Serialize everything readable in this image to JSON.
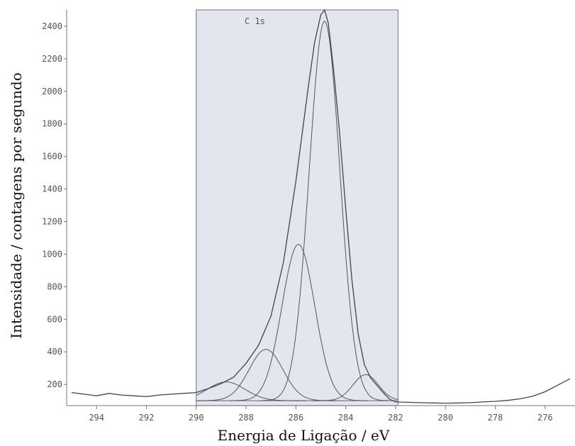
{
  "chart_data": {
    "type": "line",
    "title": "",
    "xlabel": "Energia de Ligação / eV",
    "ylabel": "Intensidade / contagens por segundo",
    "x_reversed": true,
    "xlim": [
      295.2,
      274.8
    ],
    "ylim": [
      70,
      2500
    ],
    "x_ticks": [
      294,
      292,
      290,
      288,
      286,
      284,
      282,
      280,
      278,
      276
    ],
    "y_ticks": [
      200,
      400,
      600,
      800,
      1000,
      1200,
      1400,
      1600,
      1800,
      2000,
      2200,
      2400
    ],
    "grid": false,
    "region": {
      "label": "C 1s",
      "x_start": 290.0,
      "x_end": 281.9,
      "fill": "#e3e6ee",
      "border": "#888888"
    },
    "background_level": 100,
    "series": [
      {
        "kind": "spectrum",
        "x": [
          295.0,
          294.5,
          294.0,
          293.5,
          293.0,
          292.5,
          292.0,
          291.5,
          291.0,
          290.5,
          290.0,
          289.5,
          289.0,
          288.5,
          288.0,
          287.5,
          287.0,
          286.5,
          286.0,
          285.5,
          285.25,
          285.0,
          284.85,
          284.7,
          284.5,
          284.25,
          284.0,
          283.75,
          283.5,
          283.25,
          283.0,
          282.75,
          282.5,
          282.25,
          282.0,
          281.5,
          281.0,
          280.5,
          280.0,
          279.5,
          279.0,
          278.5,
          278.0,
          277.5,
          277.0,
          276.5,
          276.0,
          275.5,
          275.0
        ],
        "y": [
          150,
          140,
          130,
          145,
          135,
          130,
          125,
          135,
          140,
          145,
          150,
          175,
          205,
          245,
          330,
          440,
          620,
          950,
          1450,
          2030,
          2300,
          2470,
          2500,
          2420,
          2150,
          1750,
          1280,
          840,
          510,
          320,
          240,
          195,
          150,
          110,
          92,
          90,
          88,
          86,
          85,
          86,
          88,
          92,
          96,
          102,
          112,
          128,
          155,
          195,
          235
        ],
        "color": "#444444"
      },
      {
        "kind": "component",
        "center": 284.85,
        "height": 2330,
        "fwhm": 1.45,
        "color": "#555555"
      },
      {
        "kind": "component",
        "center": 285.9,
        "height": 960,
        "fwhm": 1.55,
        "color": "#555555"
      },
      {
        "kind": "component",
        "center": 287.2,
        "height": 315,
        "fwhm": 1.6,
        "color": "#555555"
      },
      {
        "kind": "component",
        "center": 288.8,
        "height": 115,
        "fwhm": 1.8,
        "color": "#555555"
      },
      {
        "kind": "component",
        "center": 283.2,
        "height": 160,
        "fwhm": 1.2,
        "color": "#555555"
      }
    ]
  }
}
